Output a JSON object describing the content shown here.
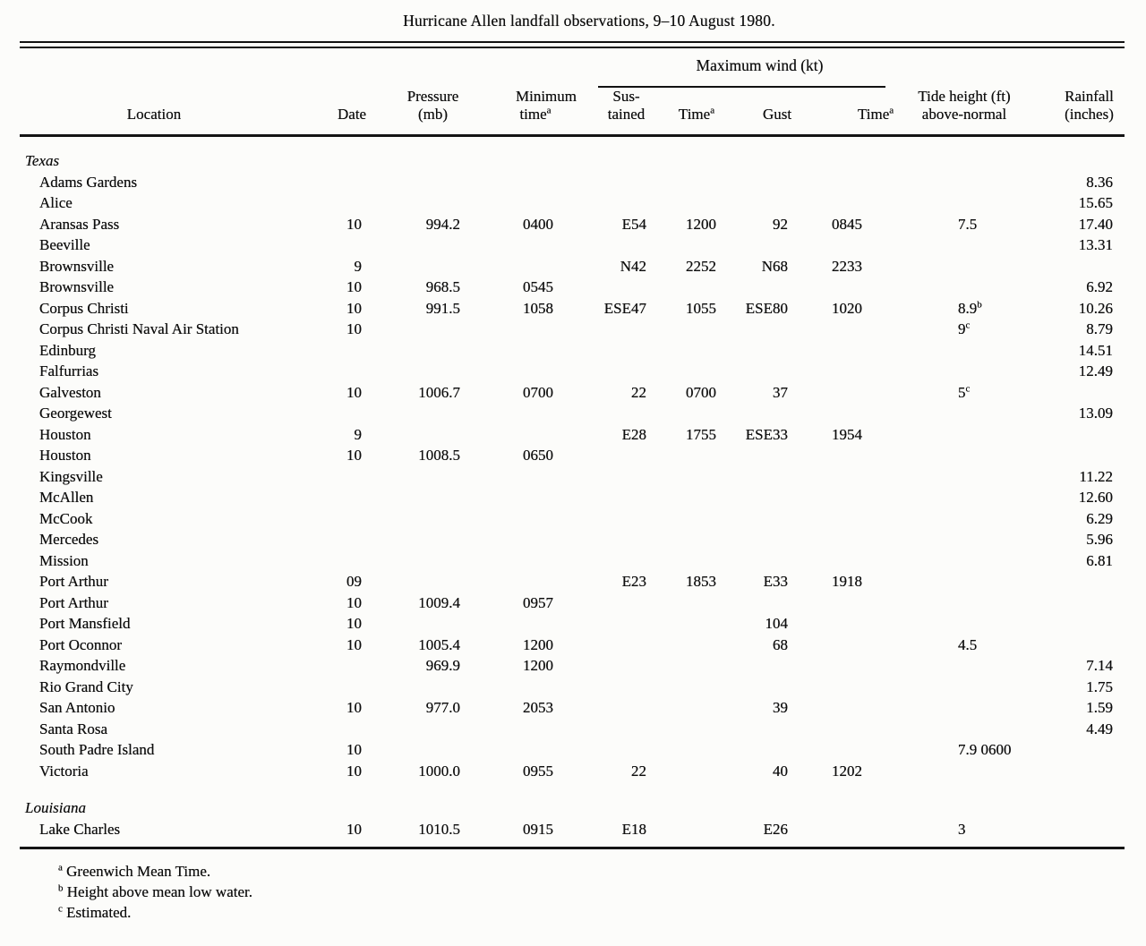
{
  "title": "Hurricane Allen landfall observations, 9–10 August 1980.",
  "table": {
    "group_header": "Maximum wind (kt)",
    "columns": [
      {
        "key": "location",
        "line1": "",
        "line2": "Location"
      },
      {
        "key": "date",
        "line1": "",
        "line2": "Date"
      },
      {
        "key": "pressure",
        "line1": "Pressure",
        "line2": "(mb)"
      },
      {
        "key": "min_time",
        "line1": "Minimum",
        "line2": "time^a"
      },
      {
        "key": "sustained",
        "line1": "Sus-",
        "line2": "tained"
      },
      {
        "key": "time1",
        "line1": "",
        "line2": "Time^a"
      },
      {
        "key": "gust",
        "line1": "",
        "line2": "Gust"
      },
      {
        "key": "time2",
        "line1": "",
        "line2": "Time^a"
      },
      {
        "key": "tide",
        "line1": "Tide height (ft)",
        "line2": "above-normal"
      },
      {
        "key": "rainfall",
        "line1": "Rainfall",
        "line2": "(inches)"
      }
    ],
    "rows": [
      {
        "section": "Texas"
      },
      {
        "location": "Adams Gardens",
        "cells": [
          "",
          "",
          "",
          "",
          "",
          "",
          "",
          "",
          "8.36"
        ]
      },
      {
        "location": "Alice",
        "cells": [
          "",
          "",
          "",
          "",
          "",
          "",
          "",
          "",
          "15.65"
        ]
      },
      {
        "location": "Aransas Pass",
        "cells": [
          "10",
          "994.2",
          "0400",
          "E54",
          "1200",
          "92",
          "0845",
          "7.5",
          "17.40"
        ]
      },
      {
        "location": "Beeville",
        "cells": [
          "",
          "",
          "",
          "",
          "",
          "",
          "",
          "",
          "13.31"
        ]
      },
      {
        "location": "Brownsville",
        "cells": [
          "9",
          "",
          "",
          "N42",
          "2252",
          "N68",
          "2233",
          "",
          ""
        ]
      },
      {
        "location": "Brownsville",
        "cells": [
          "10",
          "968.5",
          "0545",
          "",
          "",
          "",
          "",
          "",
          "6.92"
        ]
      },
      {
        "location": "Corpus Christi",
        "cells": [
          "10",
          "991.5",
          "1058",
          "ESE47",
          "1055",
          "ESE80",
          "1020",
          "8.9^b",
          "10.26"
        ]
      },
      {
        "location": "Corpus Christi Naval Air Station",
        "cells": [
          "10",
          "",
          "",
          "",
          "",
          "",
          "",
          "9^c",
          "8.79"
        ]
      },
      {
        "location": "Edinburg",
        "cells": [
          "",
          "",
          "",
          "",
          "",
          "",
          "",
          "",
          "14.51"
        ]
      },
      {
        "location": "Falfurrias",
        "cells": [
          "",
          "",
          "",
          "",
          "",
          "",
          "",
          "",
          "12.49"
        ]
      },
      {
        "location": "Galveston",
        "cells": [
          "10",
          "1006.7",
          "0700",
          "22",
          "0700",
          "37",
          "",
          "5^c",
          ""
        ]
      },
      {
        "location": "Georgewest",
        "cells": [
          "",
          "",
          "",
          "",
          "",
          "",
          "",
          "",
          "13.09"
        ]
      },
      {
        "location": "Houston",
        "cells": [
          "9",
          "",
          "",
          "E28",
          "1755",
          "ESE33",
          "1954",
          "",
          ""
        ]
      },
      {
        "location": "Houston",
        "cells": [
          "10",
          "1008.5",
          "0650",
          "",
          "",
          "",
          "",
          "",
          ""
        ]
      },
      {
        "location": "Kingsville",
        "cells": [
          "",
          "",
          "",
          "",
          "",
          "",
          "",
          "",
          "11.22"
        ]
      },
      {
        "location": "McAllen",
        "cells": [
          "",
          "",
          "",
          "",
          "",
          "",
          "",
          "",
          "12.60"
        ]
      },
      {
        "location": "McCook",
        "cells": [
          "",
          "",
          "",
          "",
          "",
          "",
          "",
          "",
          "6.29"
        ]
      },
      {
        "location": "Mercedes",
        "cells": [
          "",
          "",
          "",
          "",
          "",
          "",
          "",
          "",
          "5.96"
        ]
      },
      {
        "location": "Mission",
        "cells": [
          "",
          "",
          "",
          "",
          "",
          "",
          "",
          "",
          "6.81"
        ]
      },
      {
        "location": "Port Arthur",
        "cells": [
          "09",
          "",
          "",
          "E23",
          "1853",
          "E33",
          "1918",
          "",
          ""
        ]
      },
      {
        "location": "Port Arthur",
        "cells": [
          "10",
          "1009.4",
          "0957",
          "",
          "",
          "",
          "",
          "",
          ""
        ]
      },
      {
        "location": "Port Mansfield",
        "cells": [
          "10",
          "",
          "",
          "",
          "",
          "104",
          "",
          "",
          ""
        ]
      },
      {
        "location": "Port Oconnor",
        "cells": [
          "10",
          "1005.4",
          "1200",
          "",
          "",
          "68",
          "",
          "4.5",
          ""
        ]
      },
      {
        "location": "Raymondville",
        "cells": [
          "",
          "969.9",
          "1200",
          "",
          "",
          "",
          "",
          "",
          "7.14"
        ]
      },
      {
        "location": "Rio Grand City",
        "cells": [
          "",
          "",
          "",
          "",
          "",
          "",
          "",
          "",
          "1.75"
        ]
      },
      {
        "location": "San Antonio",
        "cells": [
          "10",
          "977.0",
          "2053",
          "",
          "",
          "39",
          "",
          "",
          "1.59"
        ]
      },
      {
        "location": "Santa Rosa",
        "cells": [
          "",
          "",
          "",
          "",
          "",
          "",
          "",
          "",
          "4.49"
        ]
      },
      {
        "location": "South Padre Island",
        "cells": [
          "10",
          "",
          "",
          "",
          "",
          "",
          "",
          "7.9 0600",
          ""
        ]
      },
      {
        "location": "Victoria",
        "cells": [
          "10",
          "1000.0",
          "0955",
          "22",
          "",
          "40",
          "1202",
          "",
          ""
        ]
      },
      {
        "section": "Louisiana",
        "gap": true
      },
      {
        "location": "Lake Charles",
        "cells": [
          "10",
          "1010.5",
          "0915",
          "E18",
          "",
          "E26",
          "",
          "3",
          ""
        ]
      }
    ]
  },
  "footnotes": [
    {
      "marker": "a",
      "text": "Greenwich Mean Time."
    },
    {
      "marker": "b",
      "text": "Height above mean low water."
    },
    {
      "marker": "c",
      "text": "Estimated."
    }
  ]
}
